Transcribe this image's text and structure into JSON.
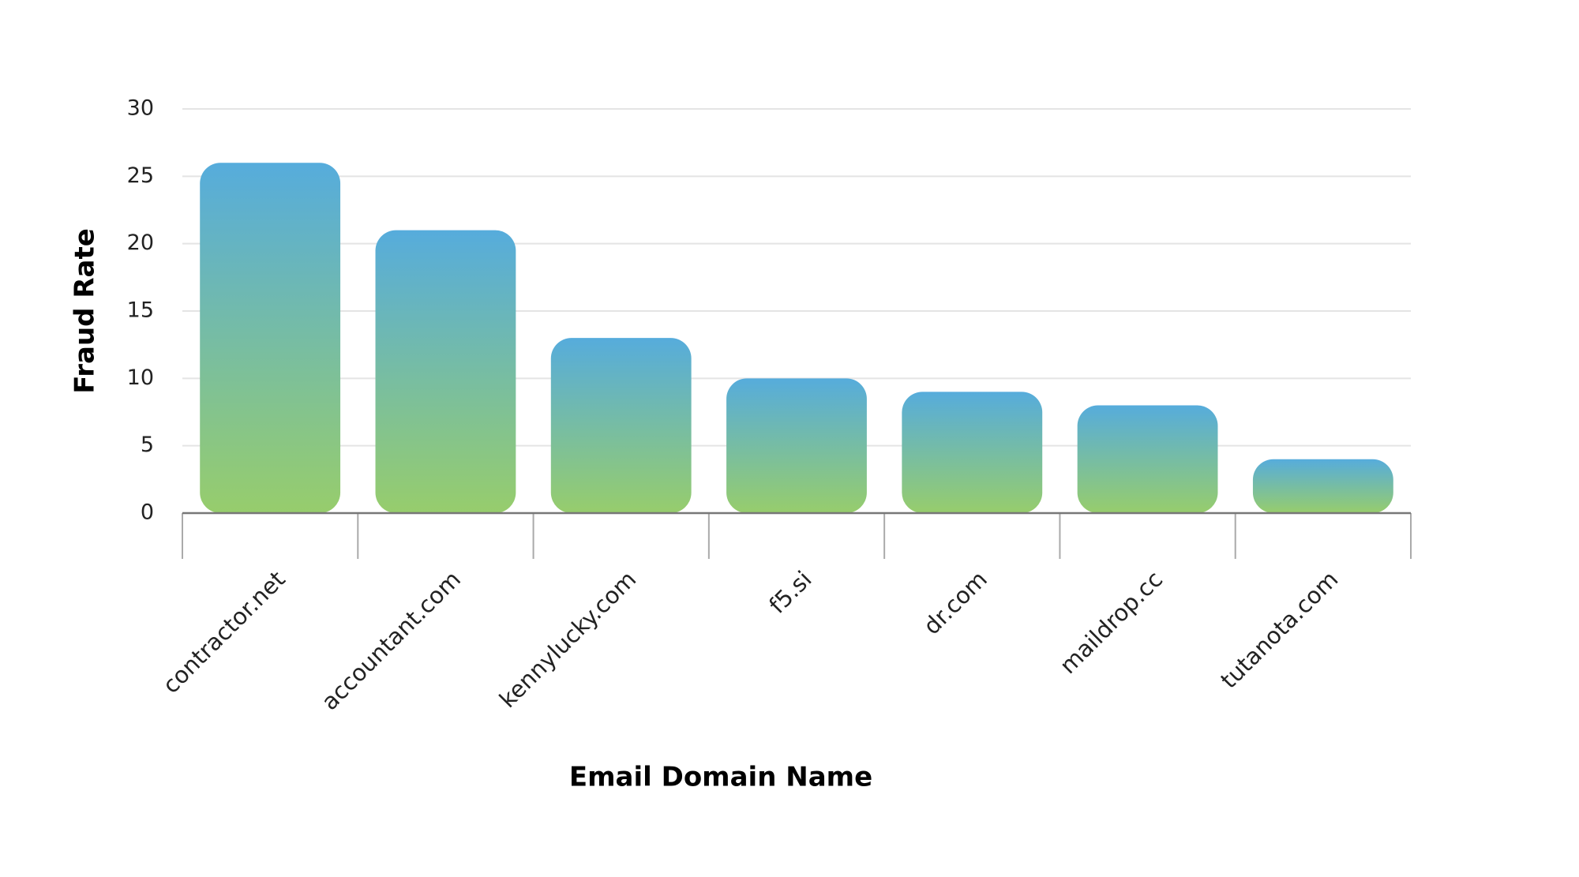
{
  "chart_data": {
    "type": "bar",
    "x_label": "Email Domain Name",
    "y_label": "Fraud Rate",
    "categories": [
      "contractor.net",
      "accountant.com",
      "kennylucky.com",
      "f5.si",
      "dr.com",
      "maildrop.cc",
      "tutanota.com"
    ],
    "values": [
      26,
      21,
      13,
      10,
      9,
      8,
      4
    ],
    "gradient": [
      "#56acdc",
      "#97cd6c"
    ],
    "ylim": [
      0,
      30
    ],
    "yticks": [
      0,
      5,
      10,
      15,
      20,
      25,
      30
    ],
    "grid": true
  }
}
